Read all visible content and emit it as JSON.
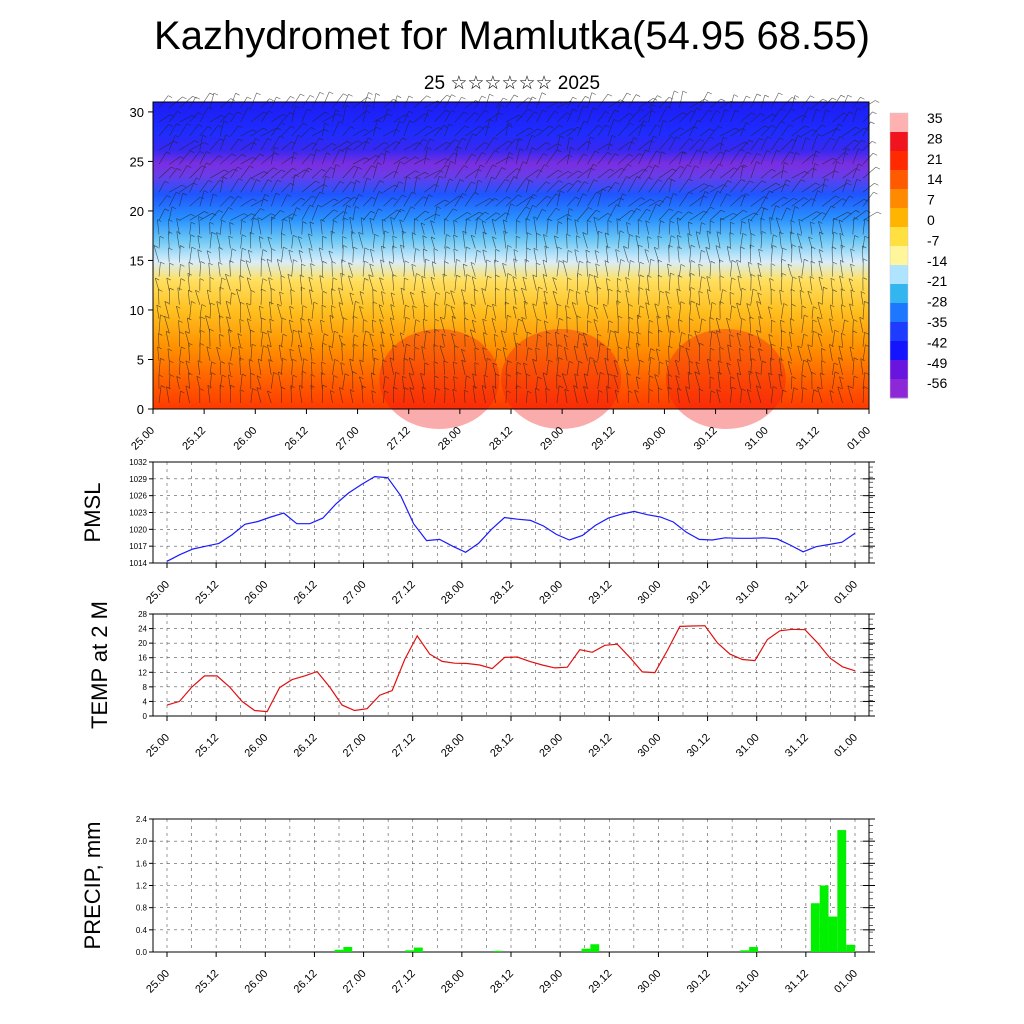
{
  "header": {
    "title": "Kazhydromet for Mamlutka(54.95 68.55)",
    "subtitle": "25 ☆☆☆☆☆☆ 2025"
  },
  "chart_data": [
    {
      "type": "heatmap",
      "description": "Vertical cross-section of temperature with wind barbs",
      "xticks": [
        "25.00",
        "25.12",
        "26.00",
        "26.12",
        "27.00",
        "27.12",
        "28.00",
        "28.12",
        "29.00",
        "29.12",
        "30.00",
        "30.12",
        "31.00",
        "31.12",
        "01.00"
      ],
      "ylim": [
        0,
        31
      ],
      "yticks": [
        0,
        5,
        10,
        15,
        20,
        25,
        30
      ],
      "colorbar": {
        "labels": [
          "35",
          "28",
          "21",
          "14",
          "7",
          "0",
          "-7",
          "-14",
          "-21",
          "-28",
          "-35",
          "-42",
          "-49",
          "-56"
        ],
        "colors": [
          "#ffb0b0",
          "#f0141e",
          "#ff2a00",
          "#ff5a00",
          "#ff8a00",
          "#ffb400",
          "#ffe040",
          "#fff59a",
          "#aee4ff",
          "#33b5f0",
          "#1e78ff",
          "#1e3cff",
          "#1414ff",
          "#6a14e0",
          "#8c28d8"
        ]
      }
    },
    {
      "type": "line",
      "ylabel": "PMSL",
      "ylim": [
        1014,
        1032
      ],
      "yticks": [
        1014,
        1017,
        1020,
        1023,
        1026,
        1029,
        1032
      ],
      "xticks": [
        "25.00",
        "25.12",
        "26.00",
        "26.12",
        "27.00",
        "27.12",
        "28.00",
        "28.12",
        "29.00",
        "29.12",
        "30.00",
        "30.12",
        "31.00",
        "31.12",
        "01.00"
      ],
      "color": "#1a1aff",
      "values": [
        1014.3,
        1015.5,
        1016.5,
        1017,
        1017.5,
        1019,
        1020.9,
        1021.4,
        1022.2,
        1022.9,
        1021,
        1021,
        1022,
        1024.5,
        1026.5,
        1028,
        1029.4,
        1029.2,
        1026,
        1021,
        1018,
        1018.2,
        1017,
        1015.9,
        1017.5,
        1020,
        1022.1,
        1021.8,
        1021.6,
        1020.6,
        1019.1,
        1018.1,
        1018.9,
        1020.7,
        1022,
        1022.7,
        1023.2,
        1022.6,
        1022.2,
        1021.3,
        1019.5,
        1018.2,
        1018.1,
        1018.5,
        1018.4,
        1018.4,
        1018.5,
        1018.3,
        1017.2,
        1016,
        1016.9,
        1017.3,
        1017.7,
        1019.3
      ]
    },
    {
      "type": "line",
      "ylabel": "TEMP at 2 M",
      "ylim": [
        0,
        28
      ],
      "yticks": [
        0,
        4,
        8,
        12,
        16,
        20,
        24,
        28
      ],
      "xticks": [
        "25.00",
        "25.12",
        "26.00",
        "26.12",
        "27.00",
        "27.12",
        "28.00",
        "28.12",
        "29.00",
        "29.12",
        "30.00",
        "30.12",
        "31.00",
        "31.12",
        "01.00"
      ],
      "color": "#e01010",
      "values": [
        3,
        4,
        8,
        11,
        11,
        8,
        4,
        1.5,
        1.2,
        7.8,
        10,
        11,
        12.2,
        8,
        3,
        1.5,
        2,
        5.7,
        7,
        15.5,
        22,
        17,
        15,
        14.5,
        14.4,
        14,
        13,
        16.1,
        16.2,
        15,
        14,
        13.2,
        13.4,
        18.2,
        17.5,
        19.4,
        19.7,
        16.1,
        12.1,
        11.9,
        18,
        24.6,
        24.7,
        24.8,
        20.1,
        17,
        15.5,
        15.2,
        21,
        23.4,
        23.8,
        23.7,
        20.1,
        15.9,
        13.5,
        12.4
      ]
    },
    {
      "type": "bar",
      "ylabel": "PRECIP, mm",
      "ylim": [
        0,
        2.4
      ],
      "yticks": [
        0.0,
        0.4,
        0.8,
        1.2,
        1.6,
        2.0,
        2.4
      ],
      "xticks": [
        "25.00",
        "25.12",
        "26.00",
        "26.12",
        "27.00",
        "27.12",
        "28.00",
        "28.12",
        "29.00",
        "29.12",
        "30.00",
        "30.12",
        "31.00",
        "31.12",
        "01.00"
      ],
      "color": "#00f000",
      "bars": [
        {
          "t": 19.5,
          "v": 0.04
        },
        {
          "t": 20.5,
          "v": 0.09
        },
        {
          "t": 27.5,
          "v": 0.03
        },
        {
          "t": 28.5,
          "v": 0.08
        },
        {
          "t": 37.5,
          "v": 0.02
        },
        {
          "t": 47.5,
          "v": 0.06
        },
        {
          "t": 48.5,
          "v": 0.14
        },
        {
          "t": 65.5,
          "v": 0.03
        },
        {
          "t": 66.5,
          "v": 0.09
        },
        {
          "t": 73.5,
          "v": 0.88
        },
        {
          "t": 74.5,
          "v": 1.2
        },
        {
          "t": 75.5,
          "v": 0.64
        },
        {
          "t": 76.5,
          "v": 2.2
        },
        {
          "t": 77.5,
          "v": 0.13
        }
      ]
    }
  ]
}
